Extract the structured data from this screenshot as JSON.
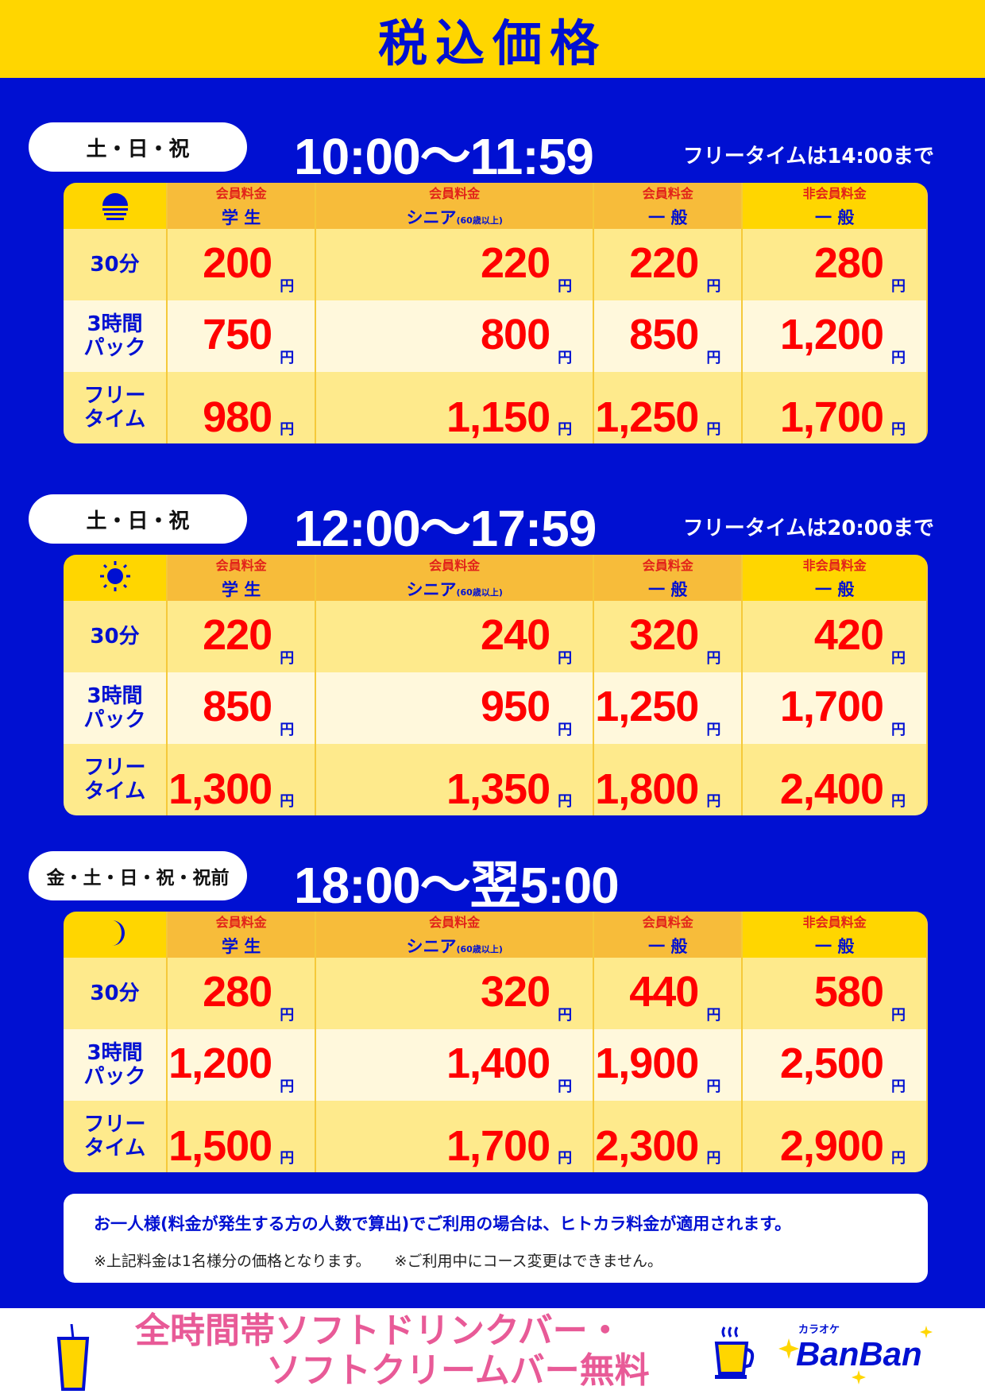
{
  "header": {
    "title": "税込価格"
  },
  "columns": [
    {
      "member": "会員料金",
      "type": "学 生",
      "note": ""
    },
    {
      "member": "会員料金",
      "type": "シニア",
      "note": "(60歳以上)"
    },
    {
      "member": "会員料金",
      "type": "一 般",
      "note": ""
    },
    {
      "member": "非会員料金",
      "type": "一 般",
      "note": ""
    }
  ],
  "row_labels": [
    "30分",
    "3時間\nパック",
    "フリー\nタイム"
  ],
  "yen": "円",
  "sections": [
    {
      "days": "土・日・祝",
      "time": "10:00〜11:59",
      "free_note": "フリータイムは14:00まで",
      "icon": "sunset-icon",
      "prices": [
        [
          "200",
          "220",
          "220",
          "280"
        ],
        [
          "750",
          "800",
          "850",
          "1,200"
        ],
        [
          "980",
          "1,150",
          "1,250",
          "1,700"
        ]
      ]
    },
    {
      "days": "土・日・祝",
      "time": "12:00〜17:59",
      "free_note": "フリータイムは20:00まで",
      "icon": "sun-icon",
      "prices": [
        [
          "220",
          "240",
          "320",
          "420"
        ],
        [
          "850",
          "950",
          "1,250",
          "1,700"
        ],
        [
          "1,300",
          "1,350",
          "1,800",
          "2,400"
        ]
      ]
    },
    {
      "days": "金・土・日・祝・祝前",
      "time": "18:00〜翌5:00",
      "free_note": "",
      "icon": "moon-icon",
      "prices": [
        [
          "280",
          "320",
          "440",
          "580"
        ],
        [
          "1,200",
          "1,400",
          "1,900",
          "2,500"
        ],
        [
          "1,500",
          "1,700",
          "2,300",
          "2,900"
        ]
      ]
    }
  ],
  "notice": {
    "line1": "お一人様(料金が発生する方の人数で算出)でご利用の場合は、ヒトカラ料金が適用されます。",
    "note1": "※上記料金は1名様分の価格となります。",
    "note2": "※ご利用中にコース変更はできません。"
  },
  "footer": {
    "promo_line1": "全時間帯ソフトドリンクバー・",
    "promo_line2": "ソフトクリームバー無料",
    "logo_small": "カラオケ",
    "logo_main": "BanBan"
  },
  "colors": {
    "blue": "#0010d2",
    "yellow": "#ffd600",
    "orange": "#f7bc3a",
    "red": "#ff0000",
    "pink": "#e85a97"
  }
}
